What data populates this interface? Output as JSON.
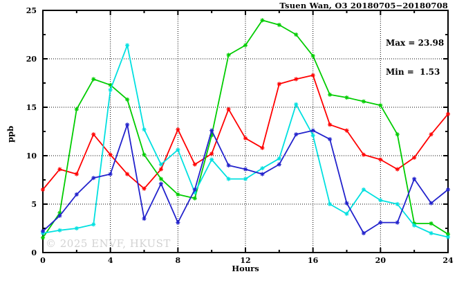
{
  "figure": {
    "title": "Tsuen Wan, O3 20180705−20180708",
    "stats": {
      "max_label": "Max = 23.98",
      "min_label": "Min =  1.53"
    },
    "y_axis_label": "ppb",
    "x_axis_label": "Hours",
    "watermark": "© 2025 ENVF, HKUST"
  },
  "chart_data": {
    "type": "line",
    "title": "Tsuen Wan, O3 20180705−20180708",
    "xlabel": "Hours",
    "ylabel": "ppb",
    "xlim": [
      0,
      24
    ],
    "ylim": [
      0,
      25
    ],
    "x_major_ticks": [
      0,
      4,
      8,
      12,
      16,
      20,
      24
    ],
    "x_minor_ticks": [
      2,
      6,
      10,
      14,
      18,
      22
    ],
    "y_major_ticks": [
      0,
      5,
      10,
      15,
      20,
      25
    ],
    "y_minor_ticks": [
      2.5,
      7.5,
      12.5,
      17.5,
      22.5
    ],
    "grid": "dotted-at-major",
    "legend_position": "none",
    "marker": "asterisk",
    "x": [
      0,
      1,
      2,
      3,
      4,
      5,
      6,
      7,
      8,
      9,
      10,
      11,
      12,
      13,
      14,
      15,
      16,
      17,
      18,
      19,
      20,
      21,
      22,
      23,
      24
    ],
    "series": [
      {
        "name": "series-red",
        "color": "#ff0000",
        "values": [
          6.5,
          8.6,
          8.1,
          12.2,
          10.1,
          8.1,
          6.6,
          8.6,
          12.7,
          9.1,
          10.2,
          14.8,
          11.8,
          10.8,
          17.4,
          17.9,
          18.3,
          13.2,
          12.6,
          10.1,
          9.6,
          8.6,
          9.8,
          12.2,
          14.3
        ]
      },
      {
        "name": "series-green",
        "color": "#00cc00",
        "values": [
          1.53,
          4.1,
          14.8,
          17.9,
          17.3,
          15.8,
          10.1,
          7.6,
          6.0,
          5.6,
          12.1,
          20.4,
          21.4,
          23.98,
          23.5,
          22.5,
          20.3,
          16.3,
          16.0,
          15.6,
          15.2,
          12.2,
          3.0,
          3.0,
          1.9
        ]
      },
      {
        "name": "series-cyan",
        "color": "#00e0e0",
        "values": [
          2.0,
          2.3,
          2.5,
          2.9,
          16.8,
          21.4,
          12.7,
          9.1,
          10.6,
          6.2,
          9.6,
          7.6,
          7.6,
          8.7,
          9.7,
          15.3,
          12.1,
          5.0,
          4.0,
          6.5,
          5.4,
          5.0,
          2.8,
          2.0,
          1.6
        ]
      },
      {
        "name": "series-blue",
        "color": "#2222cc",
        "values": [
          2.2,
          3.8,
          6.0,
          7.7,
          8.1,
          13.2,
          3.5,
          7.1,
          3.1,
          6.5,
          12.6,
          9.0,
          8.6,
          8.1,
          9.1,
          12.2,
          12.6,
          11.7,
          5.1,
          2.0,
          3.1,
          3.1,
          7.6,
          5.1,
          6.5
        ]
      }
    ],
    "stats": {
      "max": 23.98,
      "min": 1.53
    },
    "axis_color": "#000000",
    "background": "#ffffff"
  }
}
